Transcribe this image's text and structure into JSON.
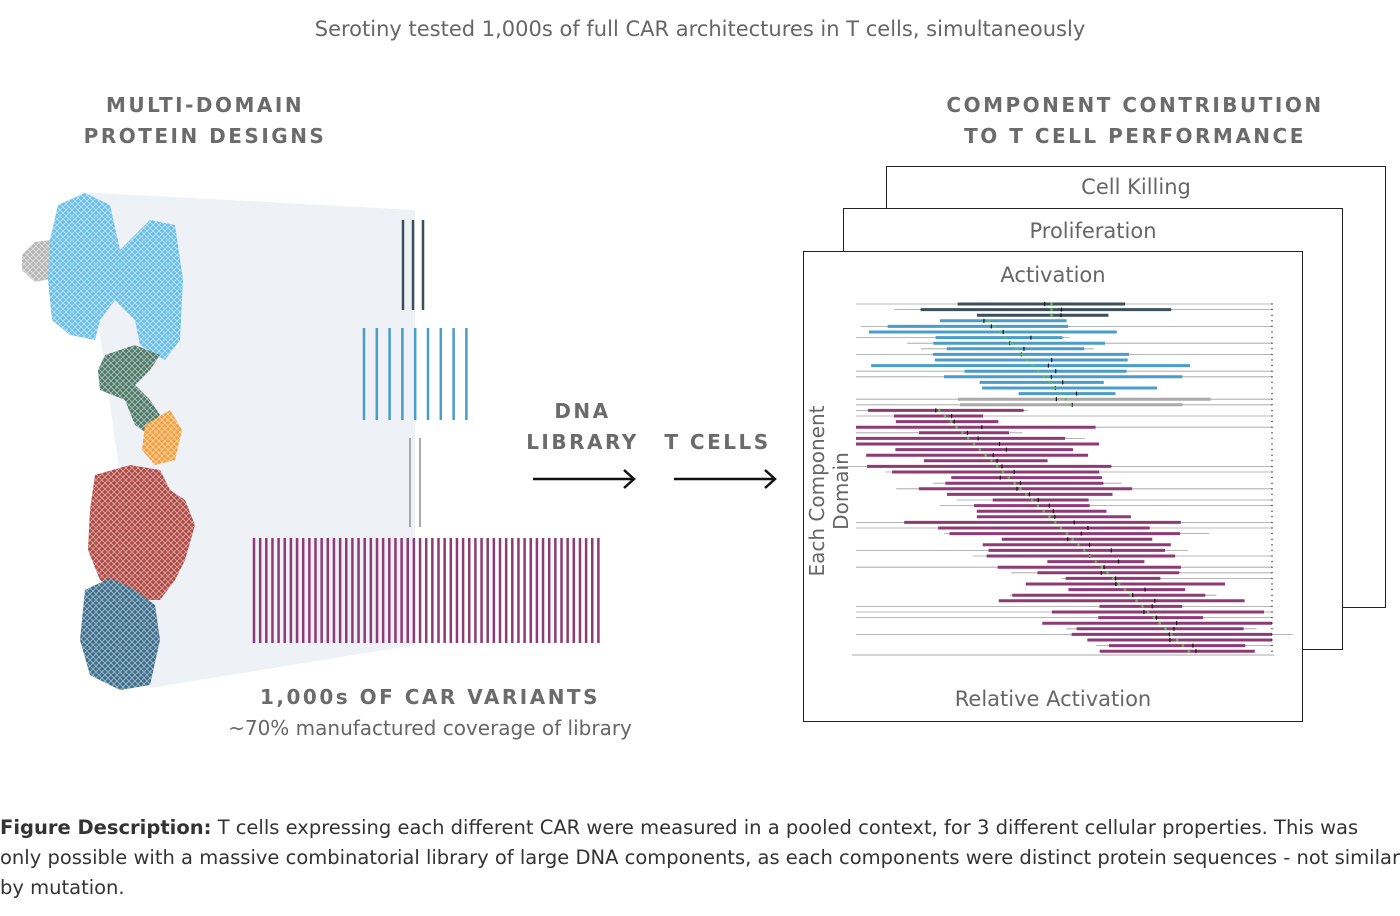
{
  "title": "Serotiny tested 1,000s of full CAR architectures in T cells, simultaneously",
  "left": {
    "heading_line1": "MULTI-DOMAIN",
    "heading_line2": "PROTEIN DESIGNS",
    "variants_label": "1,000s OF CAR VARIANTS",
    "coverage_label": "~70% manufactured coverage of library"
  },
  "flow": {
    "step1_line1": "DNA",
    "step1_line2": "LIBRARY",
    "step2": "T CELLS"
  },
  "right": {
    "heading_line1": "COMPONENT CONTRIBUTION",
    "heading_line2": "TO T CELL PERFORMANCE",
    "panels": [
      "Cell Killing",
      "Proliferation",
      "Activation"
    ],
    "y_axis_label": "Each Component Domain",
    "x_axis_label": "Relative Activation"
  },
  "description": {
    "label": "Figure Description:",
    "text": " T cells expressing each different CAR were measured in a pooled context, for 3 different cellular properties. This was only possible with a massive combinatorial library of large DNA components, as each components were distinct protein sequences - not similar by mutation."
  },
  "colors": {
    "dark_domain": "#3d4f5c",
    "blue_domain": "#4a9cc9",
    "gray_domain": "#aaaaaa",
    "magenta_domain": "#8e3a74",
    "mean_marker": "#5cc04a"
  }
}
